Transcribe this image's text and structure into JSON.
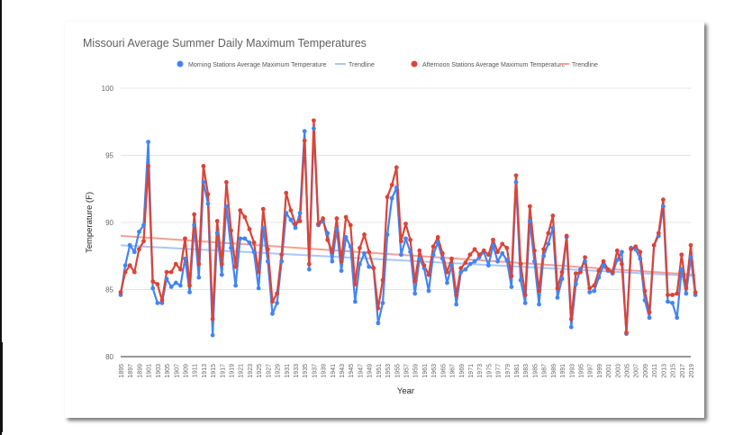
{
  "chart_data": {
    "type": "line",
    "title": "Missouri Average Summer Daily Maximum Temperatures",
    "xlabel": "Year",
    "ylabel": "Temperature (F)",
    "ylim": [
      80,
      100
    ],
    "yticks": [
      80,
      85,
      90,
      95,
      100
    ],
    "xlim": [
      1895,
      2019
    ],
    "xticks": [
      1895,
      1897,
      1899,
      1901,
      1903,
      1905,
      1907,
      1909,
      1911,
      1913,
      1915,
      1917,
      1919,
      1921,
      1923,
      1925,
      1927,
      1929,
      1931,
      1933,
      1935,
      1937,
      1939,
      1941,
      1943,
      1945,
      1947,
      1949,
      1951,
      1953,
      1955,
      1957,
      1959,
      1961,
      1963,
      1965,
      1967,
      1969,
      1971,
      1973,
      1975,
      1977,
      1979,
      1981,
      1983,
      1985,
      1987,
      1989,
      1991,
      1993,
      1995,
      1997,
      1999,
      2001,
      2003,
      2005,
      2007,
      2009,
      2011,
      2013,
      2015,
      2017,
      2019
    ],
    "grid": true,
    "legend_position": "top",
    "legend": [
      {
        "label": "Morning Stations Average Maximum Temperature",
        "kind": "point",
        "color": "#4285f4"
      },
      {
        "label": "Trendline",
        "kind": "line",
        "color": "#a9c6f8"
      },
      {
        "label": "Afternoon Stations Average Maximum Temperature",
        "kind": "point",
        "color": "#db4437"
      },
      {
        "label": "Trendline",
        "kind": "line",
        "color": "#f0a097"
      }
    ],
    "series": [
      {
        "name": "Morning Stations Average Maximum Temperature",
        "color": "#4285f4",
        "x_start": 1895,
        "values": [
          84.6,
          86.8,
          88.3,
          87.8,
          89.3,
          89.8,
          96.0,
          85.1,
          84.0,
          84.0,
          85.8,
          85.2,
          85.5,
          85.3,
          87.3,
          84.8,
          89.8,
          85.9,
          93.0,
          91.4,
          81.6,
          89.2,
          86.1,
          91.2,
          88.1,
          85.3,
          88.8,
          88.8,
          88.5,
          87.8,
          85.1,
          89.6,
          87.1,
          83.2,
          84.0,
          87.1,
          90.7,
          90.2,
          89.6,
          90.7,
          96.8,
          86.5,
          97.0,
          89.8,
          90.1,
          89.2,
          87.1,
          89.5,
          86.4,
          88.9,
          88.2,
          84.1,
          86.9,
          87.7,
          86.7,
          86.6,
          82.5,
          84.0,
          89.1,
          91.8,
          92.6,
          87.6,
          88.8,
          87.8,
          84.7,
          87.3,
          86.6,
          84.9,
          87.6,
          88.5,
          87.3,
          85.5,
          86.8,
          83.9,
          86.3,
          86.5,
          86.9,
          87.1,
          87.4,
          87.8,
          86.8,
          88.3,
          87.1,
          87.7,
          87.2,
          85.2,
          93.0,
          85.7,
          84.0,
          90.1,
          87.1,
          83.9,
          87.5,
          88.4,
          89.6,
          84.4,
          85.8,
          88.9,
          82.2,
          85.4,
          86.5,
          87.1,
          84.8,
          84.9,
          85.9,
          86.8,
          86.4,
          86.2,
          87.2,
          87.8,
          81.7,
          88.1,
          88.0,
          87.3,
          84.2,
          82.9,
          88.3,
          89.0,
          91.2,
          84.1,
          84.0,
          82.9,
          86.5,
          84.7,
          87.4,
          84.6
        ],
        "trendline": [
          88.3,
          86.0
        ]
      },
      {
        "name": "Afternoon Stations Average Maximum Temperature",
        "color": "#db4437",
        "x_start": 1895,
        "values": [
          84.8,
          86.3,
          86.8,
          86.3,
          88.0,
          88.6,
          94.2,
          85.6,
          85.4,
          84.2,
          86.3,
          86.3,
          86.9,
          86.5,
          88.8,
          85.3,
          90.6,
          86.9,
          94.2,
          92.1,
          82.8,
          90.1,
          86.9,
          93.0,
          89.4,
          86.7,
          90.9,
          90.4,
          89.5,
          88.5,
          86.3,
          91.0,
          88.0,
          84.1,
          84.7,
          87.6,
          92.2,
          90.9,
          89.9,
          90.1,
          96.1,
          86.9,
          97.6,
          89.9,
          90.3,
          88.7,
          87.8,
          90.3,
          87.1,
          90.4,
          89.8,
          85.4,
          88.1,
          89.1,
          87.8,
          86.6,
          83.6,
          85.7,
          91.9,
          92.8,
          94.1,
          88.6,
          89.9,
          88.7,
          85.6,
          87.9,
          86.8,
          86.1,
          88.2,
          88.9,
          87.7,
          86.3,
          87.3,
          84.6,
          86.6,
          87.0,
          87.6,
          88.0,
          87.6,
          87.9,
          87.6,
          88.7,
          87.8,
          88.4,
          88.1,
          86.0,
          93.5,
          86.9,
          84.6,
          91.2,
          87.9,
          84.9,
          88.0,
          89.2,
          90.5,
          85.1,
          86.3,
          89.0,
          82.8,
          86.2,
          86.3,
          87.4,
          85.1,
          85.3,
          86.4,
          87.1,
          86.5,
          86.3,
          87.9,
          86.9,
          81.8,
          88.0,
          88.2,
          87.8,
          84.9,
          83.3,
          88.3,
          89.2,
          91.7,
          84.6,
          84.6,
          84.7,
          87.6,
          85.1,
          88.3,
          84.8
        ],
        "trendline": [
          89.0,
          86.1
        ]
      }
    ]
  }
}
